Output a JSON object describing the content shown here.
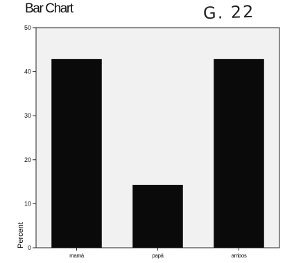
{
  "chart_data": {
    "type": "bar",
    "title": "Bar Chart",
    "ylabel": "Percent",
    "xlabel": "",
    "categories": [
      "mamá",
      "papá",
      "ambos"
    ],
    "values": [
      42.9,
      14.3,
      42.9
    ],
    "ylim": [
      0,
      50
    ],
    "yticks": [
      0,
      10,
      20,
      30,
      40,
      50
    ],
    "ytick_labels": [
      "0",
      "10",
      "20",
      "30",
      "40",
      "50"
    ],
    "bar_color": "#0a0a0a",
    "grid": false,
    "legend": "none"
  },
  "annotation": {
    "handwritten": "G. 22"
  }
}
